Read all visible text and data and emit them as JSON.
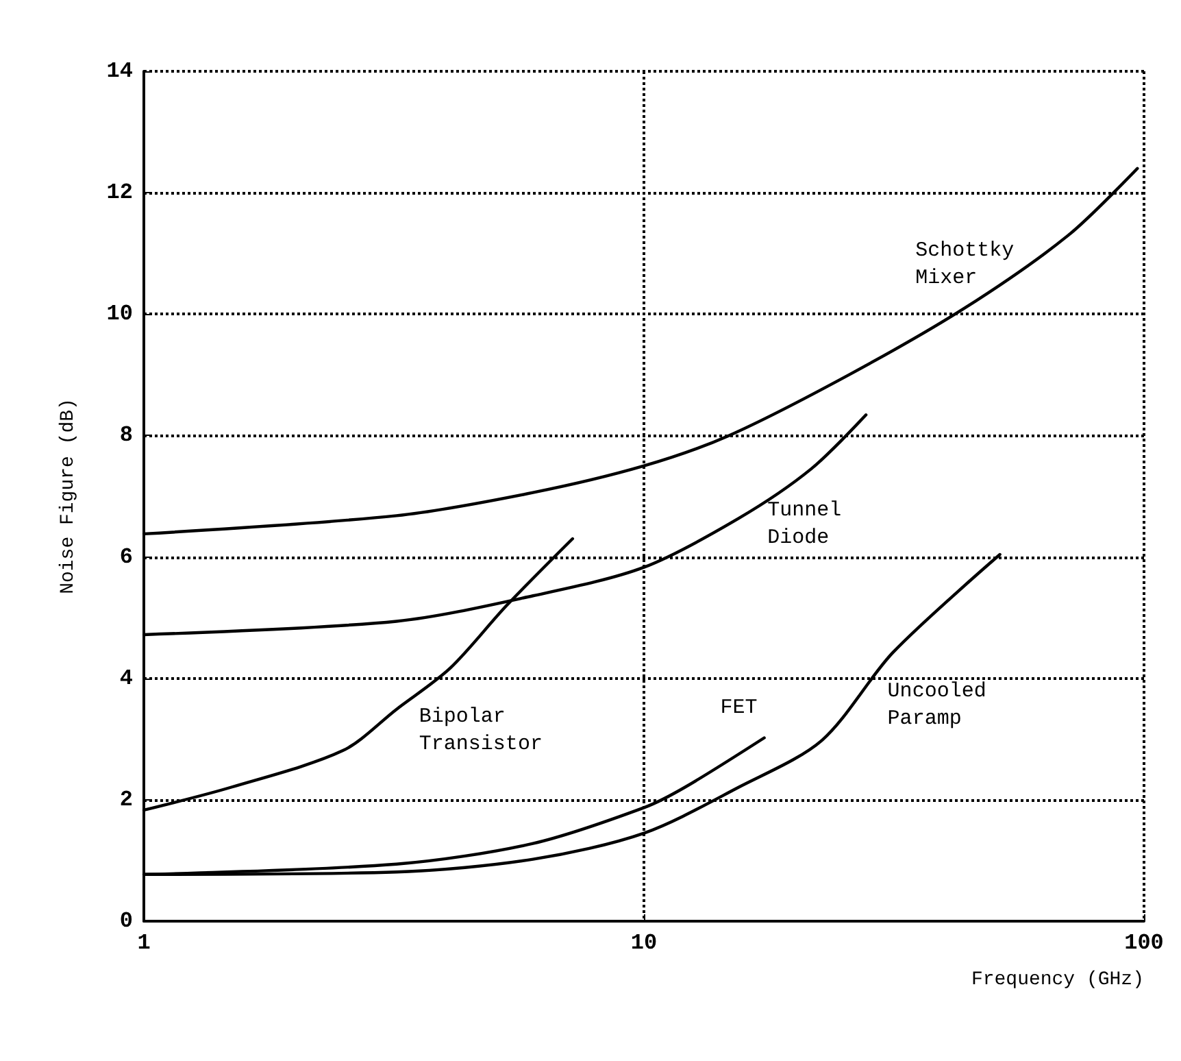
{
  "chart_data": {
    "type": "line",
    "xlabel": "Frequency (GHz)",
    "ylabel": "Noise Figure (dB)",
    "log": "x",
    "xlim": [
      1,
      100
    ],
    "xticks": [
      1,
      10,
      100
    ],
    "ylim": [
      0,
      14
    ],
    "yticks": [
      0,
      2,
      4,
      6,
      8,
      10,
      12,
      14
    ],
    "grid": true,
    "legend": false,
    "marker": "none",
    "line_style": "solid",
    "series": [
      {
        "name": "Schottky Mixer",
        "color": "#000000",
        "x": [
          1,
          3.2,
          6,
          10,
          14.8,
          25.7,
          43.8,
          70.6,
          97
        ],
        "values": [
          6.38,
          6.68,
          7.06,
          7.5,
          8.0,
          9.0,
          10.1,
          11.3,
          12.4
        ]
      },
      {
        "name": "Tunnel Diode",
        "color": "#000000",
        "x": [
          1,
          3.2,
          6,
          10,
          15.5,
          21.6,
          27.8
        ],
        "values": [
          4.72,
          4.94,
          5.36,
          5.83,
          6.64,
          7.45,
          8.34
        ]
      },
      {
        "name": "Bipolar Transistor",
        "color": "#000000",
        "x": [
          1,
          1.5,
          2.5,
          3.2,
          4.1,
          5.3,
          7.2
        ],
        "values": [
          1.83,
          2.21,
          2.81,
          3.49,
          4.17,
          5.19,
          6.3
        ]
      },
      {
        "name": "FET",
        "color": "#000000",
        "x": [
          1,
          3.2,
          6,
          10,
          12.1,
          17.4
        ],
        "values": [
          0.77,
          0.94,
          1.28,
          1.87,
          2.21,
          3.02
        ]
      },
      {
        "name": "Uncooled Paramp",
        "color": "#000000",
        "x": [
          1,
          3.2,
          6,
          10,
          15.5,
          22.7,
          31.5,
          51.5
        ],
        "values": [
          0.77,
          0.81,
          1.02,
          1.45,
          2.21,
          2.98,
          4.43,
          6.04
        ]
      }
    ]
  }
}
